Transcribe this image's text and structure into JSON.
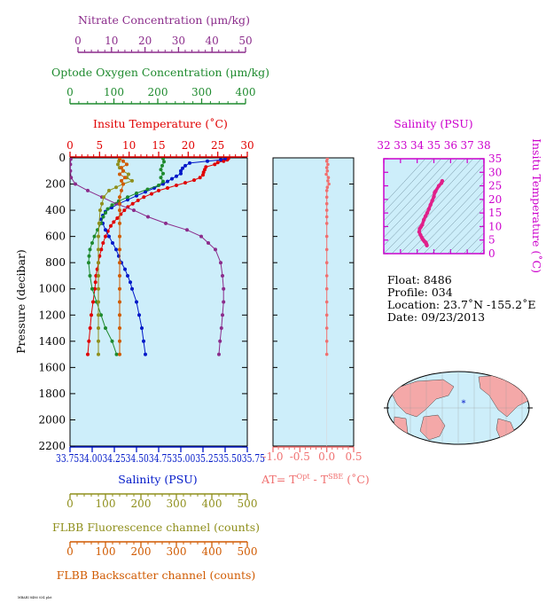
{
  "colors": {
    "nitrate": "#8b2c8b",
    "oxygen": "#1e8a2e",
    "temperature": "#e00000",
    "salinity": "#0018c8",
    "fluorescence": "#8f8f1c",
    "backscatter": "#d05a00",
    "delta_t": "#f07070",
    "ts_axis": "#cc00cc",
    "panel_bg": "#cdeefa"
  },
  "axes": {
    "nitrate": {
      "title": "Nitrate Concentration (μm/kg)",
      "ticks": [
        "0",
        "10",
        "20",
        "30",
        "40",
        "50"
      ]
    },
    "oxygen": {
      "title": "Optode Oxygen Concentration (μm/kg)",
      "ticks": [
        "0",
        "100",
        "200",
        "300",
        "400"
      ]
    },
    "temperature": {
      "title": "Insitu Temperature (˚C)",
      "ticks": [
        "0",
        "5",
        "10",
        "15",
        "20",
        "25",
        "30"
      ]
    },
    "pressure": {
      "title": "Pressure (decibar)",
      "ticks": [
        "0",
        "200",
        "400",
        "600",
        "800",
        "1000",
        "1200",
        "1400",
        "1600",
        "1800",
        "2000",
        "2200"
      ]
    },
    "salinity": {
      "title": "Salinity (PSU)",
      "ticks": [
        "33.75",
        "34.00",
        "34.25",
        "34.50",
        "34.75",
        "35.00",
        "35.25",
        "35.50",
        "35.75"
      ],
      "tick_line": "33.7534.0034.2534.5034.7535.0035.2535.5035.75"
    },
    "fluorescence": {
      "title": "FLBB Fluorescence channel (counts)",
      "ticks": [
        "0",
        "100",
        "200",
        "300",
        "400",
        "500"
      ]
    },
    "backscatter": {
      "title": "FLBB Backscatter channel (counts)",
      "ticks": [
        "0",
        "100",
        "200",
        "300",
        "400",
        "500"
      ]
    },
    "delta_t": {
      "title_main": "AT= T",
      "sup1": "Opt",
      "mid": " - T",
      "sup2": "SBE",
      "unit": " (˚C)",
      "ticks": [
        "-1.0",
        "-0.5",
        "0.0",
        "0.5"
      ]
    },
    "ts_salinity": {
      "title": "Salinity (PSU)",
      "ticks": [
        "32",
        "33",
        "34",
        "35",
        "36",
        "37",
        "38"
      ]
    },
    "ts_temperature": {
      "title": "Insitu Temperature (˚C)",
      "ticks": [
        "0",
        "5",
        "10",
        "15",
        "20",
        "25",
        "30",
        "35"
      ]
    }
  },
  "info": {
    "float": "Float:  8486",
    "profile": "Profile:  034",
    "location": "Location:  23.7˚N  -155.2˚E",
    "date": "Date:  09/23/2013"
  },
  "footer": "MBARI 8486 034 plot",
  "chart_data": [
    {
      "type": "line",
      "title": "",
      "ylabel": "Pressure (decibar)",
      "ylim": [
        2200,
        0
      ],
      "series": [
        {
          "name": "Insitu Temperature (˚C)",
          "units": "˚C",
          "xlim": [
            0,
            30
          ],
          "p": [
            5,
            15,
            25,
            35,
            50,
            70,
            90,
            110,
            130,
            150,
            170,
            190,
            210,
            230,
            250,
            275,
            300,
            325,
            350,
            375,
            400,
            430,
            460,
            490,
            520,
            560,
            600,
            650,
            700,
            750,
            800,
            850,
            900,
            950,
            1000,
            1100,
            1200,
            1300,
            1400,
            1500
          ],
          "values": [
            26.8,
            26.6,
            26.0,
            25.0,
            24.5,
            23.0,
            22.8,
            22.6,
            22.5,
            22.0,
            21.0,
            19.5,
            18.0,
            16.5,
            15.0,
            13.8,
            12.5,
            11.5,
            10.6,
            9.8,
            9.2,
            8.6,
            8.0,
            7.4,
            6.9,
            6.4,
            6.0,
            5.6,
            5.3,
            5.0,
            4.8,
            4.6,
            4.4,
            4.3,
            4.2,
            3.9,
            3.6,
            3.4,
            3.2,
            3.0
          ]
        },
        {
          "name": "Salinity (PSU)",
          "units": "PSU",
          "xlim": [
            33.75,
            35.75
          ],
          "p": [
            5,
            15,
            25,
            40,
            60,
            80,
            100,
            120,
            140,
            160,
            180,
            200,
            230,
            260,
            290,
            320,
            350,
            380,
            410,
            440,
            470,
            500,
            550,
            600,
            650,
            700,
            750,
            800,
            850,
            900,
            950,
            1000,
            1100,
            1200,
            1300,
            1400,
            1500
          ],
          "values": [
            35.5,
            35.45,
            35.3,
            35.1,
            35.05,
            35.02,
            35.0,
            35.0,
            34.95,
            34.9,
            34.85,
            34.8,
            34.7,
            34.6,
            34.5,
            34.4,
            34.3,
            34.22,
            34.15,
            34.12,
            34.1,
            34.12,
            34.15,
            34.19,
            34.23,
            34.27,
            34.3,
            34.33,
            34.37,
            34.4,
            34.43,
            34.45,
            34.5,
            34.53,
            34.56,
            34.58,
            34.6
          ]
        },
        {
          "name": "Nitrate Concentration (μm/kg)",
          "units": "μm/kg",
          "xlim": [
            0,
            50
          ],
          "p": [
            10,
            50,
            100,
            150,
            200,
            250,
            300,
            350,
            400,
            450,
            500,
            550,
            600,
            650,
            700,
            800,
            900,
            1000,
            1100,
            1200,
            1300,
            1400,
            1500
          ],
          "values": [
            0.2,
            0.1,
            0.1,
            0.3,
            1.5,
            5,
            9,
            13,
            18,
            22,
            27,
            33,
            37,
            39,
            41,
            42.5,
            43,
            43.3,
            43.3,
            43,
            42.7,
            42.3,
            42
          ]
        },
        {
          "name": "Optode Oxygen Concentration (μm/kg)",
          "units": "μm/kg",
          "xlim": [
            0,
            400
          ],
          "p": [
            5,
            30,
            60,
            90,
            120,
            150,
            180,
            210,
            240,
            270,
            300,
            330,
            360,
            390,
            420,
            450,
            500,
            550,
            600,
            650,
            700,
            750,
            800,
            900,
            1000,
            1100,
            1200,
            1300,
            1400,
            1500
          ],
          "values": [
            210,
            212,
            208,
            205,
            210,
            205,
            210,
            200,
            175,
            150,
            130,
            110,
            95,
            85,
            80,
            75,
            70,
            62,
            55,
            50,
            45,
            43,
            42,
            45,
            50,
            60,
            70,
            80,
            95,
            105
          ]
        },
        {
          "name": "FLBB Fluorescence channel (counts)",
          "units": "counts",
          "xlim": [
            0,
            500
          ],
          "p": [
            5,
            25,
            50,
            75,
            100,
            125,
            150,
            175,
            200,
            225,
            250,
            300,
            350,
            400,
            500,
            600,
            700,
            800,
            900,
            1000,
            1100,
            1200,
            1300,
            1400,
            1500
          ],
          "values": [
            140,
            138,
            135,
            140,
            150,
            165,
            160,
            175,
            150,
            130,
            110,
            95,
            90,
            85,
            82,
            80,
            80,
            80,
            80,
            80,
            80,
            80,
            80,
            80,
            80
          ]
        },
        {
          "name": "FLBB Backscatter channel (counts)",
          "units": "counts",
          "xlim": [
            0,
            500
          ],
          "p": [
            5,
            25,
            50,
            75,
            100,
            125,
            150,
            175,
            200,
            250,
            300,
            350,
            400,
            500,
            600,
            700,
            800,
            900,
            1000,
            1100,
            1200,
            1300,
            1400,
            1500
          ],
          "values": [
            140,
            150,
            160,
            145,
            150,
            140,
            155,
            145,
            150,
            145,
            140,
            140,
            140,
            140,
            140,
            140,
            140,
            140,
            140,
            140,
            140,
            140,
            140,
            140
          ]
        }
      ]
    },
    {
      "type": "line",
      "title": "",
      "series": [
        {
          "name": "AT= T(Opt) - T(SBE)",
          "units": "˚C",
          "xlim": [
            -1.0,
            0.5
          ],
          "p": [
            5,
            25,
            50,
            75,
            100,
            125,
            150,
            175,
            200,
            225,
            250,
            300,
            350,
            400,
            450,
            500,
            600,
            700,
            800,
            900,
            1000,
            1100,
            1200,
            1300,
            1400,
            1500
          ],
          "values": [
            0.01,
            0.0,
            0.02,
            0.0,
            0.01,
            -0.01,
            0.03,
            0.02,
            0.04,
            0.01,
            0.0,
            0.0,
            0.0,
            0.0,
            0.0,
            0.0,
            0.0,
            0.0,
            0.0,
            0.0,
            0.0,
            0.0,
            0.0,
            0.0,
            0.0,
            0.0
          ]
        }
      ]
    },
    {
      "type": "scatter",
      "title": "",
      "xlabel": "Salinity (PSU)",
      "ylabel": "Insitu Temperature (˚C)",
      "xlim": [
        32,
        38
      ],
      "ylim": [
        0,
        35
      ],
      "series": [
        {
          "name": "T-S",
          "x": [
            34.58,
            34.56,
            34.53,
            34.5,
            34.45,
            34.4,
            34.33,
            34.27,
            34.2,
            34.12,
            34.15,
            34.22,
            34.3,
            34.4,
            34.5,
            34.6,
            34.7,
            34.8,
            34.9,
            35.0,
            35.05,
            35.1,
            35.3,
            35.45,
            35.5
          ],
          "y": [
            3.0,
            3.4,
            3.9,
            4.2,
            4.4,
            4.8,
            5.3,
            6.0,
            6.9,
            8.0,
            9.2,
            9.8,
            10.6,
            12.5,
            13.8,
            15.0,
            16.5,
            18.0,
            19.5,
            21.0,
            22.5,
            23.0,
            25.0,
            26.0,
            26.8
          ]
        }
      ]
    }
  ]
}
